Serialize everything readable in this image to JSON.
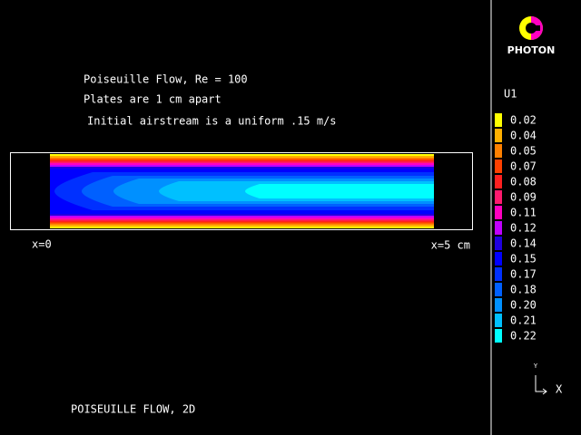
{
  "app": {
    "name": "PHOTON"
  },
  "annotations": [
    "Poiseuille Flow, Re = 100",
    "Plates are 1 cm apart",
    "Initial airstream is a uniform .15 m/s"
  ],
  "axis_labels": {
    "start": "x=0",
    "end": "x=5 cm"
  },
  "footer": "POISEUILLE FLOW, 2D",
  "triad": {
    "y": "Y",
    "x": "X"
  },
  "legend": {
    "title": "U1",
    "entries": [
      {
        "label": "0.02",
        "color": "#ffff00"
      },
      {
        "label": "0.04",
        "color": "#ffb000"
      },
      {
        "label": "0.05",
        "color": "#ff8000"
      },
      {
        "label": "0.07",
        "color": "#ff4000"
      },
      {
        "label": "0.08",
        "color": "#ff2020"
      },
      {
        "label": "0.09",
        "color": "#ff1a6e"
      },
      {
        "label": "0.11",
        "color": "#ff00c0"
      },
      {
        "label": "0.12",
        "color": "#c000ff"
      },
      {
        "label": "0.14",
        "color": "#2000e0"
      },
      {
        "label": "0.15",
        "color": "#0000ff"
      },
      {
        "label": "0.17",
        "color": "#0030ff"
      },
      {
        "label": "0.18",
        "color": "#0060ff"
      },
      {
        "label": "0.20",
        "color": "#0090ff"
      },
      {
        "label": "0.21",
        "color": "#00c0ff"
      },
      {
        "label": "0.22",
        "color": "#00ffff"
      }
    ]
  }
}
